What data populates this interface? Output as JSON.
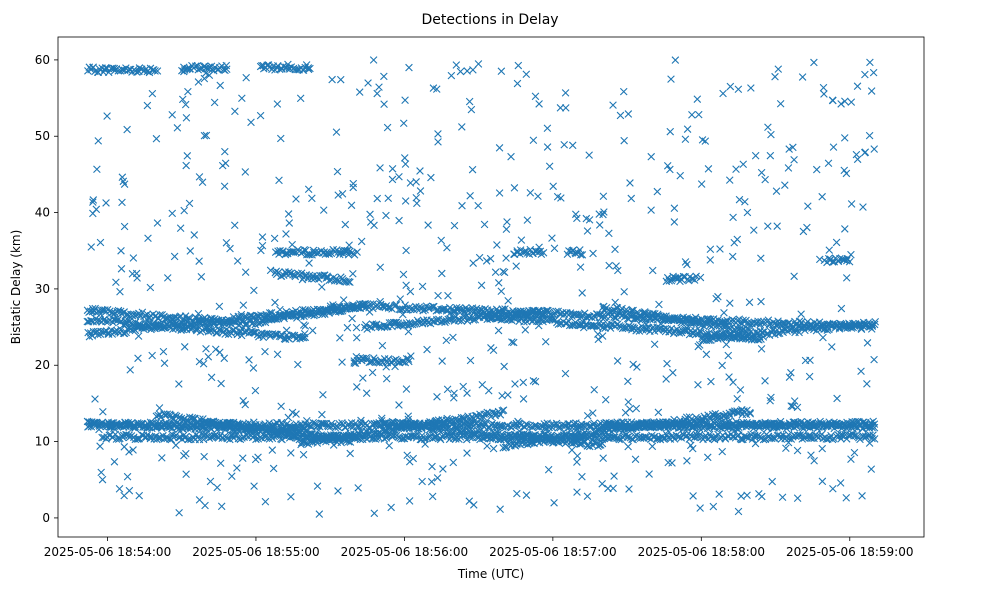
{
  "chart_data": {
    "type": "scatter",
    "title": "Detections in Delay",
    "xlabel": "Time (UTC)",
    "ylabel": "Bistatic Delay (km)",
    "marker": "x",
    "color": "#1f77b4",
    "xlim_seconds": [
      -20,
      330
    ],
    "ylim": [
      -2.5,
      63
    ],
    "x_ticks": [
      {
        "seconds": 0,
        "label": "2025-05-06 18:54:00"
      },
      {
        "seconds": 60,
        "label": "2025-05-06 18:55:00"
      },
      {
        "seconds": 120,
        "label": "2025-05-06 18:56:00"
      },
      {
        "seconds": 180,
        "label": "2025-05-06 18:57:00"
      },
      {
        "seconds": 240,
        "label": "2025-05-06 18:58:00"
      },
      {
        "seconds": 300,
        "label": "2025-05-06 18:59:00"
      }
    ],
    "y_ticks": [
      0,
      10,
      20,
      30,
      40,
      50,
      60
    ],
    "x_data_range_seconds": [
      -8.5,
      310
    ],
    "track_segments": [
      {
        "name": "top-band-a",
        "t0": -8,
        "t1": 20,
        "y0": 58.7,
        "y1": 58.7
      },
      {
        "name": "top-band-b",
        "t0": 30,
        "t1": 48,
        "y0": 58.9,
        "y1": 58.9
      },
      {
        "name": "top-band-c",
        "t0": 62,
        "t1": 82,
        "y0": 59.0,
        "y1": 59.0
      },
      {
        "name": "upper-35-a",
        "t0": 68,
        "t1": 100,
        "y0": 34.8,
        "y1": 34.8
      },
      {
        "name": "upper-32",
        "t0": 68,
        "t1": 98,
        "y0": 32.0,
        "y1": 31.2
      },
      {
        "name": "upper-35-b",
        "t0": 164,
        "t1": 176,
        "y0": 34.8,
        "y1": 34.8
      },
      {
        "name": "upper-35-c",
        "t0": 186,
        "t1": 192,
        "y0": 34.8,
        "y1": 34.8
      },
      {
        "name": "upper-31-d",
        "t0": 226,
        "t1": 238,
        "y0": 31.3,
        "y1": 31.3
      },
      {
        "name": "upper-34-e",
        "t0": 290,
        "t1": 300,
        "y0": 33.8,
        "y1": 33.8
      },
      {
        "name": "mid-27-desc-a",
        "t0": -8,
        "t1": 56,
        "y0": 27.2,
        "y1": 25.5
      },
      {
        "name": "mid-24-asc-a",
        "t0": -8,
        "t1": 104,
        "y0": 24.0,
        "y1": 27.8
      },
      {
        "name": "mid-26-desc-b",
        "t0": -8,
        "t1": 80,
        "y0": 26.0,
        "y1": 23.5
      },
      {
        "name": "mid-25-asc-b",
        "t0": 56,
        "t1": 104,
        "y0": 25.5,
        "y1": 27.8
      },
      {
        "name": "mid-27-desc-c",
        "t0": 104,
        "t1": 310,
        "y0": 27.8,
        "y1": 25.0
      },
      {
        "name": "mid-24-asc-c",
        "t0": 104,
        "t1": 178,
        "y0": 25.0,
        "y1": 27.0
      },
      {
        "name": "mid-26-desc-d",
        "t0": 150,
        "t1": 265,
        "y0": 26.5,
        "y1": 23.5
      },
      {
        "name": "mid-24-asc-d",
        "t0": 240,
        "t1": 310,
        "y0": 23.5,
        "y1": 25.5
      },
      {
        "name": "mid-26-desc-e",
        "t0": 200,
        "t1": 260,
        "y0": 27.5,
        "y1": 24.5
      },
      {
        "name": "low-21",
        "t0": 100,
        "t1": 122,
        "y0": 20.8,
        "y1": 20.5
      },
      {
        "name": "low-12-desc",
        "t0": -8,
        "t1": 80,
        "y0": 12.3,
        "y1": 11.5
      },
      {
        "name": "low-12-desc-b",
        "t0": 20,
        "t1": 98,
        "y0": 13.5,
        "y1": 10.0
      },
      {
        "name": "low-12-asc",
        "t0": 78,
        "t1": 160,
        "y0": 9.8,
        "y1": 13.8
      },
      {
        "name": "low-12-desc-c",
        "t0": 110,
        "t1": 200,
        "y0": 12.5,
        "y1": 9.5
      },
      {
        "name": "low-11-asc",
        "t0": 160,
        "t1": 260,
        "y0": 9.5,
        "y1": 14.0
      },
      {
        "name": "low-12-flat",
        "t0": 200,
        "t1": 310,
        "y0": 12.2,
        "y1": 12.3
      },
      {
        "name": "low-10.6-flat",
        "t0": -2,
        "t1": 310,
        "y0": 10.6,
        "y1": 10.6
      },
      {
        "name": "low-12-flat-b",
        "t0": -8,
        "t1": 310,
        "y0": 12.2,
        "y1": 12.0
      }
    ],
    "scatter_noise": {
      "count": 700,
      "y_range": [
        0.5,
        60
      ],
      "seed": 7
    },
    "x_range_rounded_minutes": "18:53:52 to 18:59:10"
  }
}
